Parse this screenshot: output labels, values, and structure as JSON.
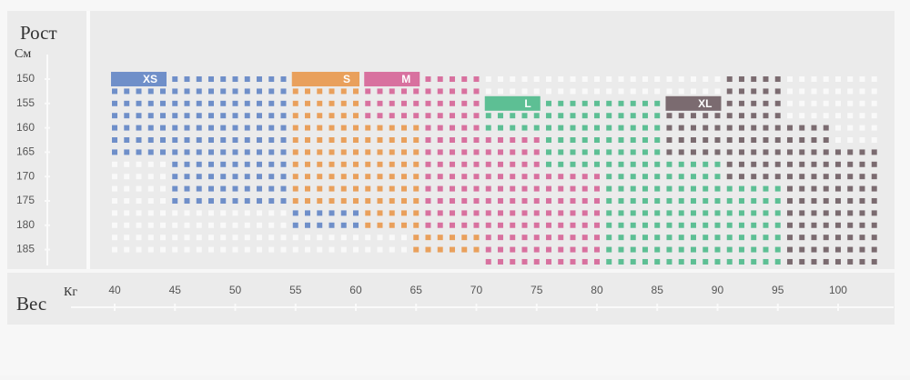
{
  "chart_data": {
    "type": "size-grid",
    "y_title": "Рост",
    "y_unit": "См",
    "x_title": "Вес",
    "x_unit": "Кг",
    "xlim": [
      38,
      104.5
    ],
    "xticks": [
      40,
      45,
      50,
      55,
      60,
      65,
      70,
      75,
      80,
      85,
      90,
      95,
      100
    ],
    "ylim": [
      136,
      189
    ],
    "yticks": [
      150,
      155,
      160,
      165,
      170,
      175,
      180,
      185
    ],
    "sizes": [
      {
        "name": "XS",
        "color": "#6f8fc9",
        "blocks": [
          [
            40,
            44,
            150,
            165
          ],
          [
            45,
            54,
            150,
            175
          ],
          [
            55,
            60,
            177.5,
            180
          ]
        ]
      },
      {
        "name": "S",
        "color": "#e9a05c",
        "blocks": [
          [
            55,
            60,
            150,
            175
          ],
          [
            61,
            65,
            160,
            180
          ],
          [
            65,
            70,
            182.5,
            185
          ]
        ]
      },
      {
        "name": "M",
        "color": "#d8719f",
        "blocks": [
          [
            61,
            65,
            150,
            157.5
          ],
          [
            66,
            70,
            150,
            180
          ],
          [
            71,
            75,
            162.5,
            187.5
          ],
          [
            76,
            80,
            170,
            187.5
          ]
        ]
      },
      {
        "name": "L",
        "color": "#5dbf94",
        "blocks": [
          [
            71,
            75,
            155,
            160
          ],
          [
            76,
            85,
            155,
            167.5
          ],
          [
            81,
            85,
            170,
            187.5
          ],
          [
            86,
            90,
            167.5,
            187.5
          ],
          [
            91,
            95,
            172.5,
            187.5
          ]
        ]
      },
      {
        "name": "XL",
        "color": "#7b6b70",
        "blocks": [
          [
            86,
            90,
            155,
            165
          ],
          [
            91,
            95,
            150,
            170
          ],
          [
            96,
            99,
            160,
            187.5
          ],
          [
            100,
            103,
            165,
            187.5
          ]
        ]
      }
    ]
  }
}
